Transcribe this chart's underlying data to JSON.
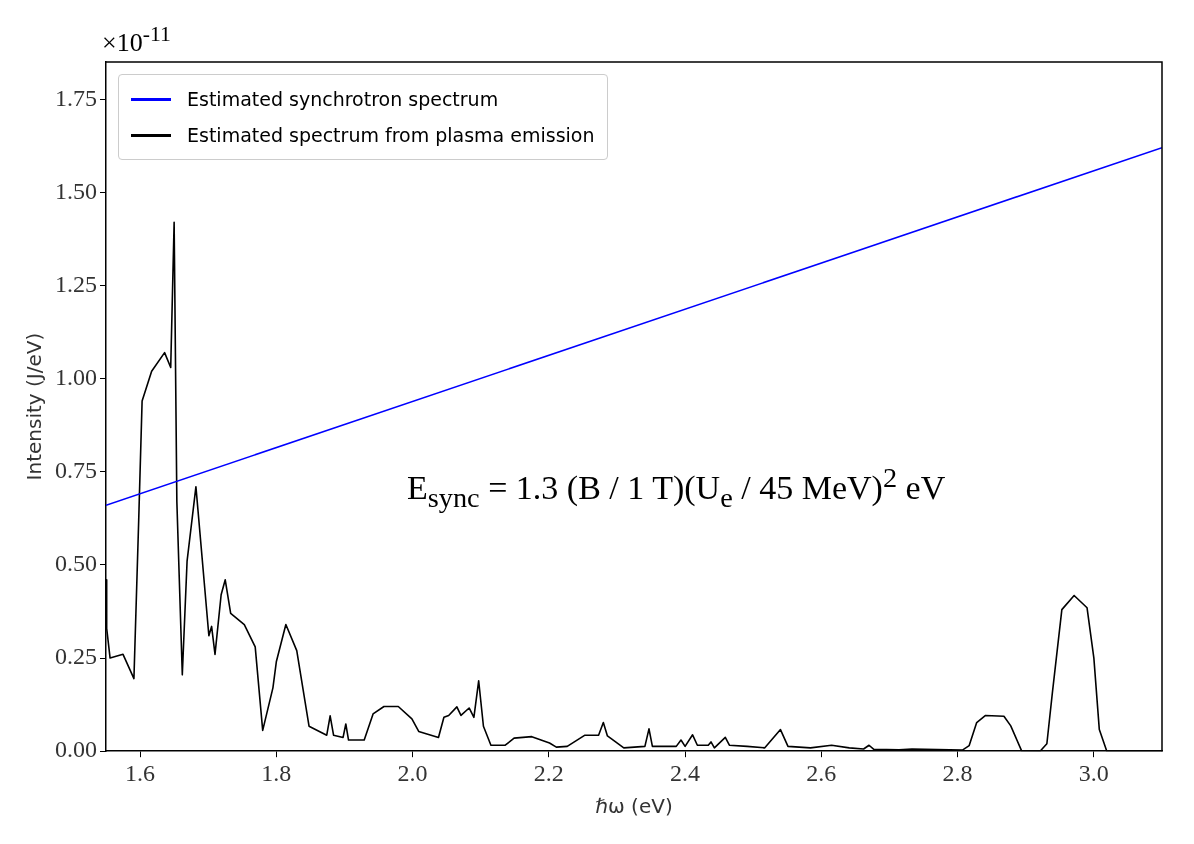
{
  "chart_data": {
    "type": "line",
    "xlabel": "ℏω (eV)",
    "ylabel": "Intensity (J/eV)",
    "xlim": [
      1.55,
      3.1
    ],
    "ylim": [
      0,
      1.85
    ],
    "xticks": [
      1.6,
      1.8,
      {
        "value": 2,
        "label": "2.0"
      },
      2.2,
      2.4,
      2.6,
      2.8,
      {
        "value": 3,
        "label": "3.0"
      }
    ],
    "yticks": [
      {
        "value": 0,
        "label": "0.00"
      },
      0.25,
      {
        "value": 0.5,
        "label": "0.50"
      },
      0.75,
      {
        "value": 1,
        "label": "1.00"
      },
      1.25,
      {
        "value": 1.5,
        "label": "1.50"
      },
      1.75
    ],
    "grid": false,
    "legend": "top left",
    "marker": "none",
    "line_style": "solid",
    "annotations": [
      "×10$^{-11}$",
      "E$_{sync}$ = 1.3 (B / 1 T)(U$_{e}$ / 45 MeV)$^{2}$ eV"
    ],
    "series": [
      {
        "name": "Estimated synchrotron spectrum",
        "color": "#0000ff",
        "x": [
          1.55,
          3.1
        ],
        "values": [
          0.66,
          1.62
        ]
      },
      {
        "name": "Estimated spectrum from plasma emission",
        "color": "#000000",
        "x": [
          1.55,
          1.551,
          1.556,
          1.575,
          1.591,
          1.598,
          1.603,
          1.617,
          1.636,
          1.645,
          1.65,
          1.654,
          1.662,
          1.669,
          1.682,
          1.701,
          1.705,
          1.71,
          1.719,
          1.725,
          1.733,
          1.753,
          1.769,
          1.78,
          1.795,
          1.8,
          1.814,
          1.83,
          1.848,
          1.874,
          1.879,
          1.884,
          1.898,
          1.902,
          1.906,
          1.929,
          1.942,
          1.958,
          1.979,
          1.999,
          2.009,
          2.038,
          2.046,
          2.053,
          2.065,
          2.071,
          2.083,
          2.09,
          2.097,
          2.104,
          2.115,
          2.136,
          2.149,
          2.175,
          2.201,
          2.211,
          2.227,
          2.253,
          2.273,
          2.28,
          2.286,
          2.31,
          2.341,
          2.347,
          2.352,
          2.387,
          2.394,
          2.4,
          2.411,
          2.418,
          2.434,
          2.438,
          2.443,
          2.459,
          2.465,
          2.491,
          2.517,
          2.54,
          2.551,
          2.584,
          2.615,
          2.641,
          2.662,
          2.67,
          2.677,
          2.714,
          2.733,
          2.807,
          2.817,
          2.828,
          2.841,
          2.868,
          2.878,
          2.894,
          2.921,
          2.931,
          2.939,
          2.953,
          2.971,
          2.99,
          3.0,
          3.008,
          3.019,
          3.1
        ],
        "values": [
          0.46,
          0.33,
          0.25,
          0.26,
          0.195,
          0.62,
          0.94,
          1.02,
          1.07,
          1.03,
          1.42,
          0.67,
          0.205,
          0.51,
          0.71,
          0.31,
          0.335,
          0.26,
          0.42,
          0.46,
          0.37,
          0.34,
          0.28,
          0.056,
          0.17,
          0.24,
          0.34,
          0.27,
          0.067,
          0.043,
          0.095,
          0.043,
          0.037,
          0.073,
          0.03,
          0.03,
          0.1,
          0.12,
          0.12,
          0.087,
          0.053,
          0.037,
          0.091,
          0.096,
          0.119,
          0.096,
          0.116,
          0.091,
          0.189,
          0.067,
          0.016,
          0.016,
          0.035,
          0.039,
          0.022,
          0.011,
          0.013,
          0.043,
          0.043,
          0.077,
          0.041,
          0.009,
          0.013,
          0.06,
          0.013,
          0.013,
          0.03,
          0.013,
          0.044,
          0.016,
          0.016,
          0.025,
          0.009,
          0.037,
          0.016,
          0.013,
          0.009,
          0.058,
          0.013,
          0.009,
          0.016,
          0.009,
          0.006,
          0.016,
          0.005,
          0.004,
          0.006,
          0.003,
          0.015,
          0.077,
          0.096,
          0.094,
          0.068,
          0.001,
          0,
          0.02,
          0.155,
          0.38,
          0.418,
          0.385,
          0.25,
          0.058,
          0,
          0
        ]
      }
    ]
  }
}
